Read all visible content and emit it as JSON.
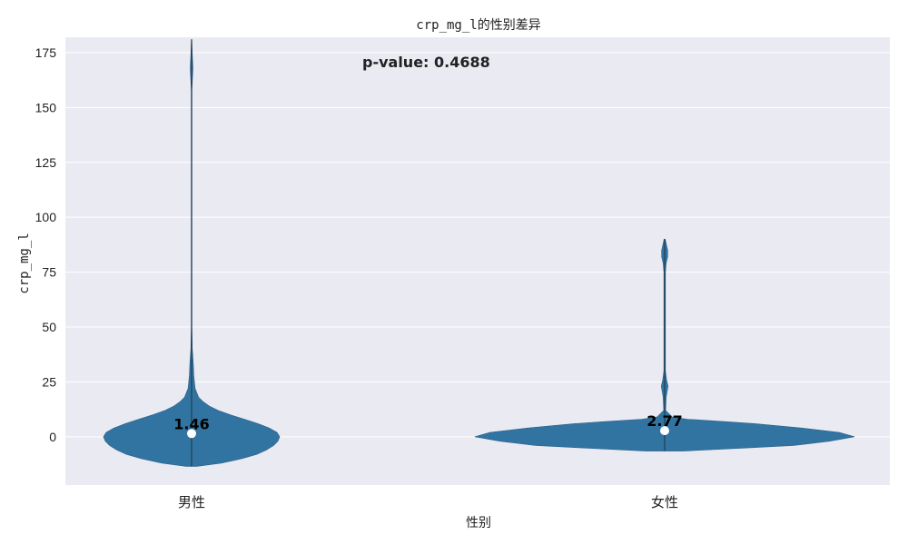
{
  "chart_data": {
    "type": "violin",
    "title": "crp_mg_l的性别差异",
    "xlabel": "性别",
    "ylabel": "crp_mg_l",
    "categories": [
      "男性",
      "女性"
    ],
    "ylim": [
      -22,
      182
    ],
    "yticks": [
      0,
      25,
      50,
      75,
      100,
      125,
      150,
      175
    ],
    "grid": true,
    "annotation": "p-value: 0.4688",
    "medians": [
      1.46,
      2.77
    ],
    "median_labels": [
      "1.46",
      "2.77"
    ],
    "violins": [
      {
        "name": "男性",
        "extent": [
          -13.5,
          181
        ],
        "profile": [
          [
            -13.5,
            0.06
          ],
          [
            -12,
            0.34
          ],
          [
            -10,
            0.57
          ],
          [
            -8,
            0.74
          ],
          [
            -6,
            0.85
          ],
          [
            -4,
            0.93
          ],
          [
            -2,
            0.98
          ],
          [
            0,
            1.0
          ],
          [
            2,
            0.97
          ],
          [
            4,
            0.88
          ],
          [
            6,
            0.75
          ],
          [
            8,
            0.6
          ],
          [
            10,
            0.44
          ],
          [
            12,
            0.3
          ],
          [
            14,
            0.2
          ],
          [
            16,
            0.13
          ],
          [
            18,
            0.08
          ],
          [
            22,
            0.04
          ],
          [
            28,
            0.025
          ],
          [
            33,
            0.02
          ],
          [
            40,
            0.008
          ],
          [
            50,
            0.004
          ],
          [
            100,
            0.004
          ],
          [
            158,
            0.004
          ],
          [
            162,
            0.008
          ],
          [
            165,
            0.012
          ],
          [
            168,
            0.015
          ],
          [
            171,
            0.012
          ],
          [
            174,
            0.008
          ],
          [
            178,
            0.005
          ],
          [
            181,
            0.003
          ]
        ]
      },
      {
        "name": "女性",
        "extent": [
          -6.5,
          90
        ],
        "profile": [
          [
            -6.5,
            0.1
          ],
          [
            -5,
            0.45
          ],
          [
            -4,
            0.68
          ],
          [
            -2,
            0.87
          ],
          [
            0,
            1.0
          ],
          [
            2,
            0.92
          ],
          [
            4,
            0.72
          ],
          [
            6,
            0.47
          ],
          [
            7,
            0.3
          ],
          [
            8,
            0.12
          ],
          [
            9,
            0.04
          ],
          [
            12,
            0.005
          ],
          [
            18,
            0.008
          ],
          [
            20,
            0.012
          ],
          [
            23,
            0.018
          ],
          [
            26,
            0.01
          ],
          [
            30,
            0.004
          ],
          [
            75,
            0.004
          ],
          [
            79,
            0.008
          ],
          [
            82,
            0.016
          ],
          [
            85,
            0.016
          ],
          [
            88,
            0.008
          ],
          [
            90,
            0.003
          ]
        ]
      }
    ],
    "colors": {
      "violin_fill": "#3274a1",
      "violin_stroke": "#2b5f86",
      "median_dot": "#ffffff",
      "plot_bg": "#eaeaf2",
      "grid": "#ffffff"
    }
  }
}
